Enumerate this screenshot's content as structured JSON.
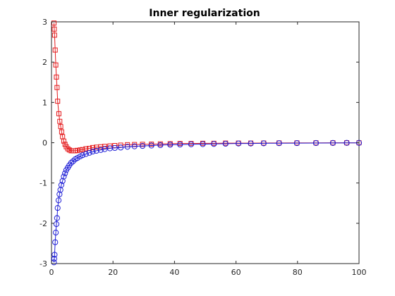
{
  "chart_data": {
    "type": "line",
    "title": "Inner regularization",
    "xlabel": "",
    "ylabel": "",
    "xlim": [
      0,
      100
    ],
    "ylim": [
      -3,
      3
    ],
    "x_ticks": [
      0,
      20,
      40,
      60,
      80,
      100
    ],
    "y_ticks": [
      -3,
      -2,
      -1,
      0,
      1,
      2,
      3
    ],
    "grid": false,
    "legend": "none",
    "series": [
      {
        "color": "#e41a1c",
        "marker": "square",
        "line": true,
        "points": [
          [
            0.8,
            2.97
          ],
          [
            0.9,
            2.82
          ],
          [
            1.0,
            2.67
          ],
          [
            1.2,
            2.3
          ],
          [
            1.4,
            1.93
          ],
          [
            1.6,
            1.63
          ],
          [
            1.8,
            1.37
          ],
          [
            2.0,
            1.03
          ],
          [
            2.4,
            0.72
          ],
          [
            2.7,
            0.53
          ],
          [
            3.0,
            0.4
          ],
          [
            3.3,
            0.27
          ],
          [
            3.6,
            0.15
          ],
          [
            4.0,
            0.04
          ],
          [
            4.4,
            -0.04
          ],
          [
            4.8,
            -0.1
          ],
          [
            5.3,
            -0.15
          ],
          [
            5.8,
            -0.18
          ],
          [
            6.4,
            -0.2
          ],
          [
            7.0,
            -0.2
          ],
          [
            7.7,
            -0.2
          ],
          [
            8.4,
            -0.19
          ],
          [
            9.3,
            -0.18
          ],
          [
            10.1,
            -0.17
          ],
          [
            11.2,
            -0.15
          ],
          [
            12.3,
            -0.14
          ],
          [
            13.4,
            -0.12
          ],
          [
            14.6,
            -0.11
          ],
          [
            16.0,
            -0.1
          ],
          [
            17.3,
            -0.09
          ],
          [
            19.0,
            -0.08
          ],
          [
            20.6,
            -0.07
          ],
          [
            22.5,
            -0.06
          ],
          [
            24.7,
            -0.05
          ],
          [
            27.0,
            -0.045
          ],
          [
            29.6,
            -0.04
          ],
          [
            32.5,
            -0.035
          ],
          [
            35.4,
            -0.03
          ],
          [
            38.6,
            -0.025
          ],
          [
            41.8,
            -0.02
          ],
          [
            45.4,
            -0.02
          ],
          [
            49.2,
            -0.015
          ],
          [
            52.8,
            -0.015
          ],
          [
            56.6,
            -0.01
          ],
          [
            60.8,
            -0.01
          ],
          [
            64.8,
            -0.01
          ],
          [
            69.0,
            -0.008
          ],
          [
            74.0,
            -0.006
          ],
          [
            79.8,
            -0.005
          ],
          [
            86.0,
            -0.004
          ],
          [
            91.5,
            -0.003
          ],
          [
            96.0,
            -0.002
          ],
          [
            100.0,
            -0.002
          ]
        ]
      },
      {
        "color": "#1f1fd6",
        "marker": "circle",
        "line": true,
        "points": [
          [
            0.8,
            -2.97
          ],
          [
            0.9,
            -2.88
          ],
          [
            1.0,
            -2.78
          ],
          [
            1.2,
            -2.47
          ],
          [
            1.4,
            -2.23
          ],
          [
            1.6,
            -2.02
          ],
          [
            1.8,
            -1.87
          ],
          [
            2.0,
            -1.62
          ],
          [
            2.3,
            -1.43
          ],
          [
            2.6,
            -1.28
          ],
          [
            2.9,
            -1.17
          ],
          [
            3.2,
            -1.05
          ],
          [
            3.6,
            -0.95
          ],
          [
            4.0,
            -0.84
          ],
          [
            4.4,
            -0.76
          ],
          [
            4.8,
            -0.68
          ],
          [
            5.3,
            -0.62
          ],
          [
            5.8,
            -0.56
          ],
          [
            6.4,
            -0.5
          ],
          [
            7.0,
            -0.46
          ],
          [
            7.7,
            -0.41
          ],
          [
            8.4,
            -0.38
          ],
          [
            9.3,
            -0.34
          ],
          [
            10.1,
            -0.31
          ],
          [
            11.2,
            -0.28
          ],
          [
            12.3,
            -0.25
          ],
          [
            13.4,
            -0.22
          ],
          [
            14.6,
            -0.2
          ],
          [
            16.0,
            -0.18
          ],
          [
            17.3,
            -0.16
          ],
          [
            19.0,
            -0.14
          ],
          [
            20.6,
            -0.13
          ],
          [
            22.5,
            -0.12
          ],
          [
            24.7,
            -0.1
          ],
          [
            27.0,
            -0.09
          ],
          [
            29.6,
            -0.08
          ],
          [
            32.5,
            -0.07
          ],
          [
            35.4,
            -0.06
          ],
          [
            38.6,
            -0.05
          ],
          [
            41.8,
            -0.045
          ],
          [
            45.4,
            -0.04
          ],
          [
            49.2,
            -0.035
          ],
          [
            52.8,
            -0.03
          ],
          [
            56.6,
            -0.025
          ],
          [
            60.8,
            -0.02
          ],
          [
            64.8,
            -0.02
          ],
          [
            69.0,
            -0.015
          ],
          [
            74.0,
            -0.012
          ],
          [
            79.8,
            -0.01
          ],
          [
            86.0,
            -0.008
          ],
          [
            91.5,
            -0.006
          ],
          [
            96.0,
            -0.005
          ],
          [
            100.0,
            -0.004
          ]
        ]
      }
    ]
  }
}
